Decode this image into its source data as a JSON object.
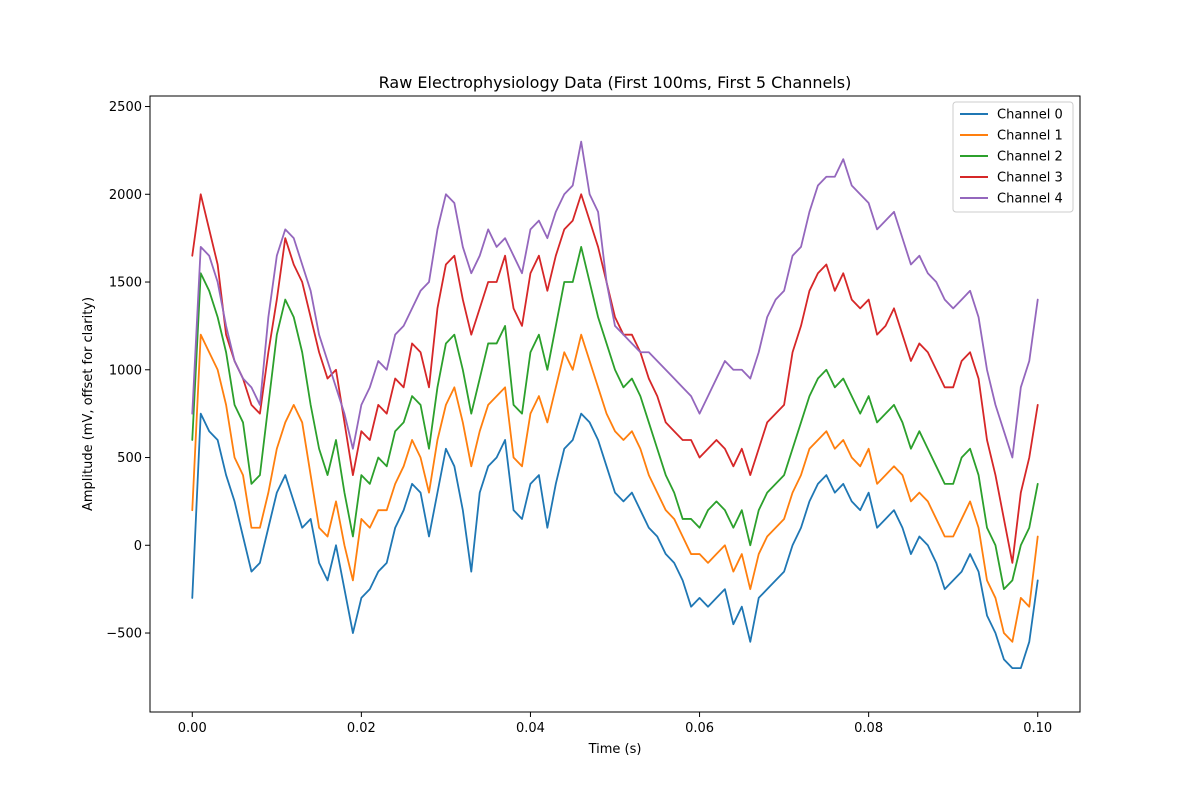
{
  "chart_data": {
    "type": "line",
    "title": "Raw Electrophysiology Data (First 100ms, First 5 Channels)",
    "xlabel": "Time (s)",
    "ylabel": "Amplitude (mV, offset for clarity)",
    "xlim": [
      -0.005,
      0.105
    ],
    "ylim": [
      -950,
      2560
    ],
    "xticks": [
      0.0,
      0.02,
      0.04,
      0.06,
      0.08,
      0.1
    ],
    "xtick_labels": [
      "0.00",
      "0.02",
      "0.04",
      "0.06",
      "0.08",
      "0.10"
    ],
    "yticks": [
      -500,
      0,
      500,
      1000,
      1500,
      2000,
      2500
    ],
    "ytick_labels": [
      "−500",
      "0",
      "500",
      "1000",
      "1500",
      "2000",
      "2500"
    ],
    "grid": false,
    "legend_position": "top-right",
    "x": [
      0.0,
      0.001,
      0.002,
      0.003,
      0.004,
      0.005,
      0.006,
      0.007,
      0.008,
      0.009,
      0.01,
      0.011,
      0.012,
      0.013,
      0.014,
      0.015,
      0.016,
      0.017,
      0.018,
      0.019,
      0.02,
      0.021,
      0.022,
      0.023,
      0.024,
      0.025,
      0.026,
      0.027,
      0.028,
      0.029,
      0.03,
      0.031,
      0.032,
      0.033,
      0.034,
      0.035,
      0.036,
      0.037,
      0.038,
      0.039,
      0.04,
      0.041,
      0.042,
      0.043,
      0.044,
      0.045,
      0.046,
      0.047,
      0.048,
      0.049,
      0.05,
      0.051,
      0.052,
      0.053,
      0.054,
      0.055,
      0.056,
      0.057,
      0.058,
      0.059,
      0.06,
      0.061,
      0.062,
      0.063,
      0.064,
      0.065,
      0.066,
      0.067,
      0.068,
      0.069,
      0.07,
      0.071,
      0.072,
      0.073,
      0.074,
      0.075,
      0.076,
      0.077,
      0.078,
      0.079,
      0.08,
      0.081,
      0.082,
      0.083,
      0.084,
      0.085,
      0.086,
      0.087,
      0.088,
      0.089,
      0.09,
      0.091,
      0.092,
      0.093,
      0.094,
      0.095,
      0.096,
      0.097,
      0.098,
      0.099,
      0.1
    ],
    "series": [
      {
        "name": "Channel 0",
        "color": "#1f77b4",
        "values": [
          -300,
          750,
          650,
          600,
          400,
          250,
          50,
          -150,
          -100,
          100,
          300,
          400,
          250,
          100,
          150,
          -100,
          -200,
          0,
          -250,
          -500,
          -300,
          -250,
          -150,
          -100,
          100,
          200,
          350,
          300,
          50,
          300,
          550,
          450,
          200,
          -150,
          300,
          450,
          500,
          600,
          200,
          150,
          350,
          400,
          100,
          350,
          550,
          600,
          750,
          700,
          600,
          450,
          300,
          250,
          300,
          200,
          100,
          50,
          -50,
          -100,
          -200,
          -350,
          -300,
          -350,
          -300,
          -250,
          -450,
          -350,
          -550,
          -300,
          -250,
          -200,
          -150,
          0,
          100,
          250,
          350,
          400,
          300,
          350,
          250,
          200,
          300,
          100,
          150,
          200,
          100,
          -50,
          50,
          0,
          -100,
          -250,
          -200,
          -150,
          -50,
          -150,
          -400,
          -500,
          -650,
          -700,
          -700,
          -550,
          -200
        ]
      },
      {
        "name": "Channel 1",
        "color": "#ff7f0e",
        "values": [
          200,
          1200,
          1100,
          1000,
          800,
          500,
          400,
          100,
          100,
          300,
          550,
          700,
          800,
          700,
          400,
          100,
          50,
          250,
          0,
          -200,
          150,
          100,
          200,
          200,
          350,
          450,
          600,
          500,
          300,
          600,
          800,
          900,
          700,
          450,
          650,
          800,
          850,
          900,
          500,
          450,
          750,
          850,
          700,
          900,
          1100,
          1000,
          1200,
          1050,
          900,
          750,
          650,
          600,
          650,
          550,
          400,
          300,
          200,
          150,
          50,
          -50,
          -50,
          -100,
          -50,
          0,
          -150,
          -50,
          -250,
          -50,
          50,
          100,
          150,
          300,
          400,
          550,
          600,
          650,
          550,
          600,
          500,
          450,
          550,
          350,
          400,
          450,
          400,
          250,
          300,
          250,
          150,
          50,
          50,
          150,
          250,
          100,
          -200,
          -300,
          -500,
          -550,
          -300,
          -350,
          50
        ]
      },
      {
        "name": "Channel 2",
        "color": "#2ca02c",
        "values": [
          600,
          1550,
          1450,
          1300,
          1100,
          800,
          700,
          350,
          400,
          800,
          1200,
          1400,
          1300,
          1100,
          800,
          550,
          400,
          600,
          300,
          50,
          400,
          350,
          500,
          450,
          650,
          700,
          850,
          800,
          550,
          900,
          1150,
          1200,
          1000,
          750,
          950,
          1150,
          1150,
          1250,
          800,
          750,
          1100,
          1200,
          1000,
          1250,
          1500,
          1500,
          1700,
          1500,
          1300,
          1150,
          1000,
          900,
          950,
          850,
          700,
          550,
          400,
          300,
          150,
          150,
          100,
          200,
          250,
          200,
          100,
          200,
          0,
          200,
          300,
          350,
          400,
          550,
          700,
          850,
          950,
          1000,
          900,
          950,
          850,
          750,
          850,
          700,
          750,
          800,
          700,
          550,
          650,
          550,
          450,
          350,
          350,
          500,
          550,
          400,
          100,
          0,
          -250,
          -200,
          0,
          100,
          350
        ]
      },
      {
        "name": "Channel 3",
        "color": "#d62728",
        "values": [
          1650,
          2000,
          1800,
          1600,
          1200,
          1050,
          950,
          800,
          750,
          1100,
          1400,
          1750,
          1600,
          1500,
          1300,
          1100,
          950,
          1000,
          700,
          400,
          650,
          600,
          800,
          750,
          950,
          900,
          1150,
          1100,
          900,
          1350,
          1600,
          1650,
          1400,
          1200,
          1350,
          1500,
          1500,
          1650,
          1350,
          1250,
          1550,
          1650,
          1450,
          1650,
          1800,
          1850,
          2000,
          1850,
          1700,
          1500,
          1300,
          1200,
          1200,
          1100,
          950,
          850,
          700,
          650,
          600,
          600,
          500,
          550,
          600,
          550,
          450,
          550,
          400,
          550,
          700,
          750,
          800,
          1100,
          1250,
          1450,
          1550,
          1600,
          1450,
          1550,
          1400,
          1350,
          1400,
          1200,
          1250,
          1350,
          1200,
          1050,
          1150,
          1100,
          1000,
          900,
          900,
          1050,
          1100,
          950,
          600,
          400,
          150,
          -100,
          300,
          500,
          800
        ]
      },
      {
        "name": "Channel 4",
        "color": "#9467bd",
        "values": [
          750,
          1700,
          1650,
          1500,
          1250,
          1050,
          950,
          900,
          800,
          1300,
          1650,
          1800,
          1750,
          1600,
          1450,
          1200,
          1050,
          900,
          750,
          550,
          800,
          900,
          1050,
          1000,
          1200,
          1250,
          1350,
          1450,
          1500,
          1800,
          2000,
          1950,
          1700,
          1550,
          1650,
          1800,
          1700,
          1750,
          1650,
          1550,
          1800,
          1850,
          1750,
          1900,
          2000,
          2050,
          2300,
          2000,
          1900,
          1500,
          1250,
          1200,
          1150,
          1100,
          1100,
          1050,
          1000,
          950,
          900,
          850,
          750,
          850,
          950,
          1050,
          1000,
          1000,
          950,
          1100,
          1300,
          1400,
          1450,
          1650,
          1700,
          1900,
          2050,
          2100,
          2100,
          2200,
          2050,
          2000,
          1950,
          1800,
          1850,
          1900,
          1750,
          1600,
          1650,
          1550,
          1500,
          1400,
          1350,
          1400,
          1450,
          1300,
          1000,
          800,
          650,
          500,
          900,
          1050,
          1400
        ]
      }
    ]
  }
}
